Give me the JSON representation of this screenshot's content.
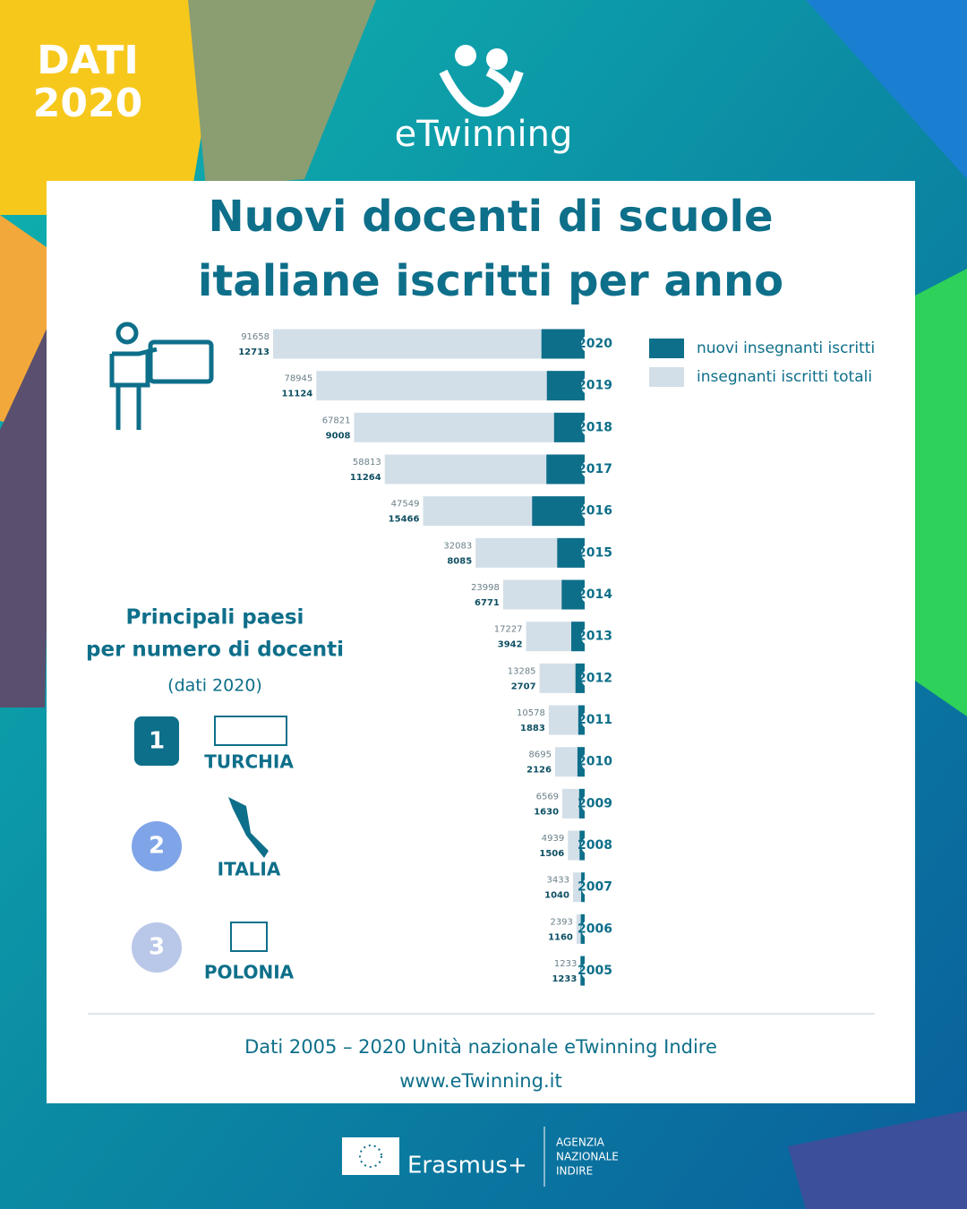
{
  "badge": [
    "DATI",
    "2020"
  ],
  "logo": "eTwinning",
  "chart_data": {
    "type": "bar",
    "title": [
      "Nuovi docenti di scuole",
      "italiane iscritti per anno"
    ],
    "categories": [
      "2020",
      "2019",
      "2018",
      "2017",
      "2016",
      "2015",
      "2014",
      "2013",
      "2012",
      "2011",
      "2010",
      "2009",
      "2008",
      "2007",
      "2006",
      "2005"
    ],
    "series": [
      {
        "name": "nuovi insegnanti iscritti",
        "color": "#0e6f8a",
        "values": [
          12713,
          11124,
          9008,
          11264,
          15466,
          8085,
          6771,
          3942,
          2707,
          1883,
          2126,
          1630,
          1506,
          1040,
          1160,
          1233
        ]
      },
      {
        "name": "insegnanti iscritti totali",
        "color": "#d3dfe8",
        "values": [
          91658,
          78945,
          67821,
          58813,
          47549,
          32083,
          23998,
          17227,
          13285,
          10578,
          8695,
          6569,
          4939,
          3433,
          2393,
          1233
        ]
      }
    ]
  },
  "countries": {
    "title": [
      "Principali paesi",
      "per numero di docenti"
    ],
    "note": "(dati 2020)",
    "ranks": [
      {
        "rank": "1",
        "name": "TURCHIA"
      },
      {
        "rank": "2",
        "name": "ITALIA"
      },
      {
        "rank": "3",
        "name": "POLONIA"
      }
    ]
  },
  "footer": {
    "source": "Dati 2005 – 2020 Unità nazionale eTwinning Indire",
    "url": "www.eTwinning.it"
  },
  "sponsor": {
    "program": "Erasmus+",
    "agency": [
      "AGENZIA",
      "NAZIONALE",
      "INDIRE"
    ]
  }
}
